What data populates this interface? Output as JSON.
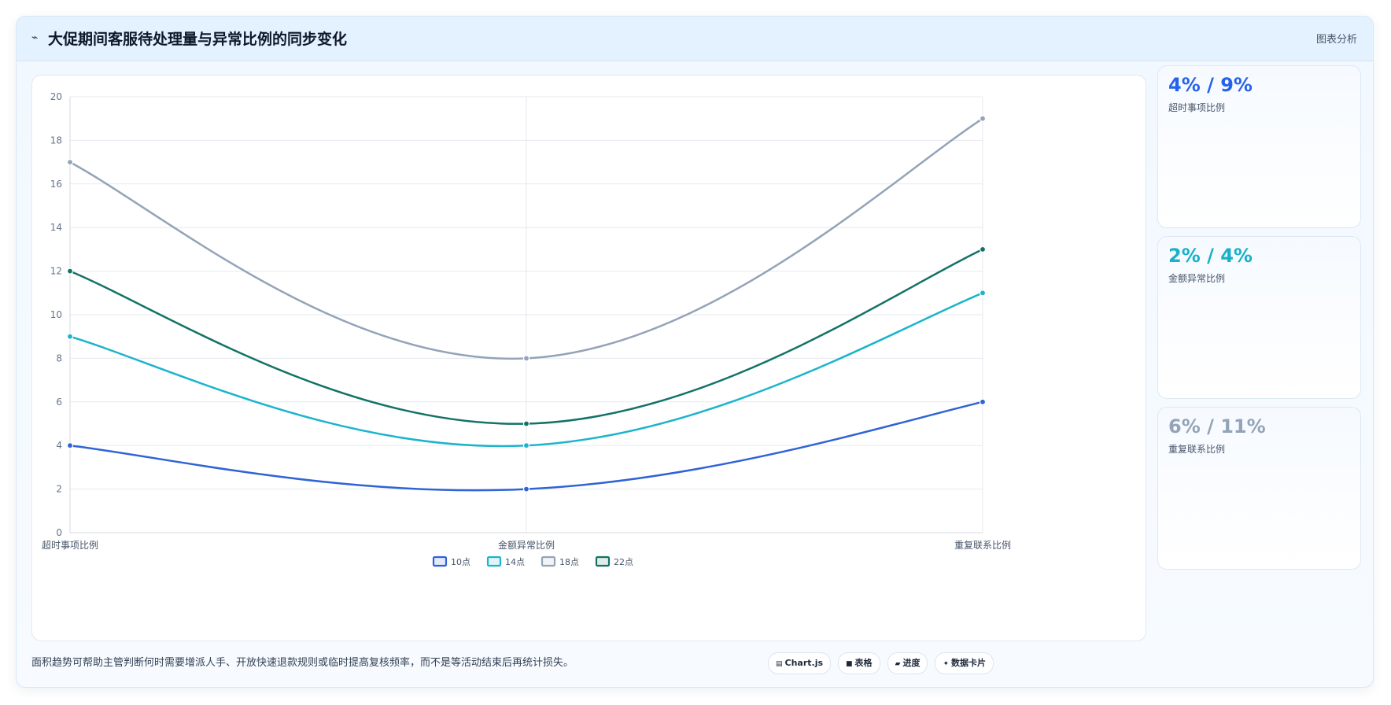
{
  "header": {
    "icon": "sparkline-icon",
    "title": "大促期间客服待处理量与异常比例的同步变化",
    "analysis_label": "图表分析"
  },
  "chart_data": {
    "type": "line",
    "categories": [
      "超时事项比例",
      "金额异常比例",
      "重复联系比例"
    ],
    "series": [
      {
        "name": "10点",
        "values": [
          4,
          2,
          6
        ],
        "color": "#2f63d6"
      },
      {
        "name": "14点",
        "values": [
          9,
          4,
          11
        ],
        "color": "#1bb4cc"
      },
      {
        "name": "18点",
        "values": [
          17,
          8,
          19
        ],
        "color": "#94a3b8"
      },
      {
        "name": "22点",
        "values": [
          12,
          5,
          13
        ],
        "color": "#137266"
      }
    ],
    "ylim": [
      0,
      20
    ],
    "yticks": [
      "0",
      "2",
      "4",
      "6",
      "8",
      "10",
      "12",
      "14",
      "16",
      "18",
      "20"
    ],
    "grid": true,
    "legend": "bottom",
    "title": "",
    "xlabel": "",
    "ylabel": ""
  },
  "kpis": [
    {
      "value": "4% / 9%",
      "label": "超时事项比例",
      "color": "#2563eb"
    },
    {
      "value": "2% / 4%",
      "label": "金额异常比例",
      "color": "#17b1c9"
    },
    {
      "value": "6% / 11%",
      "label": "重复联系比例",
      "color": "#94a3b8"
    }
  ],
  "footer": {
    "note": "面积趋势可帮助主管判断何时需要增派人手、开放快速退款规则或临时提高复核频率，而不是等活动结束后再统计损失。",
    "chips": [
      {
        "icon": "▤",
        "label": "Chart.js"
      },
      {
        "icon": "■",
        "label": "表格"
      },
      {
        "icon": "▰",
        "label": "进度"
      },
      {
        "icon": "✦",
        "label": "数据卡片"
      }
    ]
  }
}
